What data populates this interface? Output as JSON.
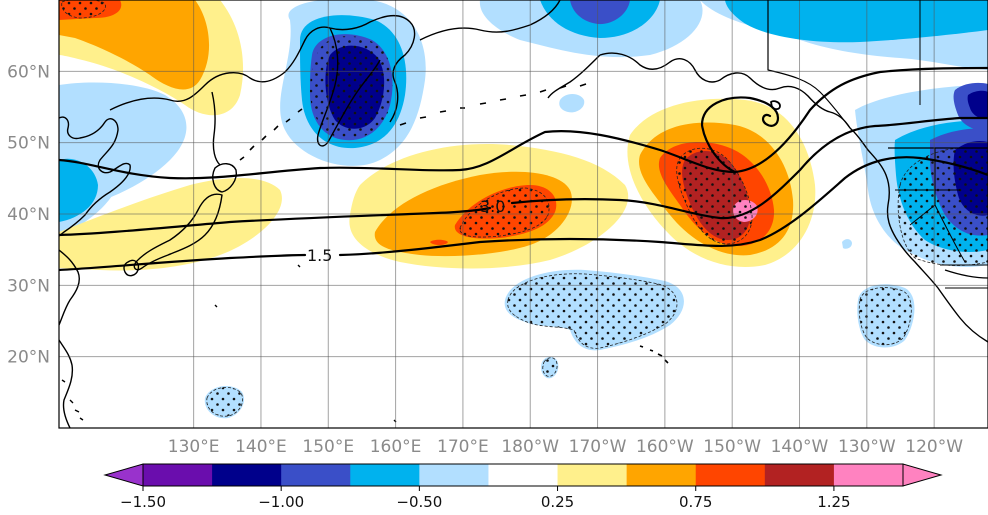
{
  "map": {
    "projection": "PlateCarree",
    "lon_range_degE": [
      110,
      248
    ],
    "lat_range": [
      10,
      70
    ],
    "gridlines": true,
    "coastlines": true,
    "stippling": "significant-regions"
  },
  "lat_labels": [
    "20°N",
    "30°N",
    "40°N",
    "50°N",
    "60°N"
  ],
  "lat_values": [
    20,
    30,
    40,
    50,
    60
  ],
  "lon_labels": [
    "130°E",
    "140°E",
    "150°E",
    "160°E",
    "170°E",
    "180°W",
    "170°W",
    "160°W",
    "150°W",
    "140°W",
    "130°W",
    "120°W"
  ],
  "lon_values": [
    130,
    140,
    150,
    160,
    170,
    180,
    190,
    200,
    210,
    220,
    230,
    240
  ],
  "colorbar": {
    "extend": "both",
    "levels": [
      -1.5,
      -1.25,
      -1.0,
      -0.75,
      -0.5,
      -0.25,
      0.25,
      0.5,
      0.75,
      1.0,
      1.25,
      1.5
    ],
    "colors": [
      "#6a0dad",
      "#00008b",
      "#3a4fc8",
      "#00b2ee",
      "#b2dfff",
      "#ffffff",
      "#fff08c",
      "#ffa500",
      "#ff4500",
      "#b22222",
      "#ff82c0"
    ],
    "under_color": "#9932cc",
    "over_color": "#ff82c0",
    "tick_labels": [
      "−1.50",
      "−1.00",
      "−0.50",
      "0.25",
      "0.75",
      "1.25"
    ]
  },
  "contours": {
    "labels": [
      "3.0",
      "1.5"
    ]
  }
}
